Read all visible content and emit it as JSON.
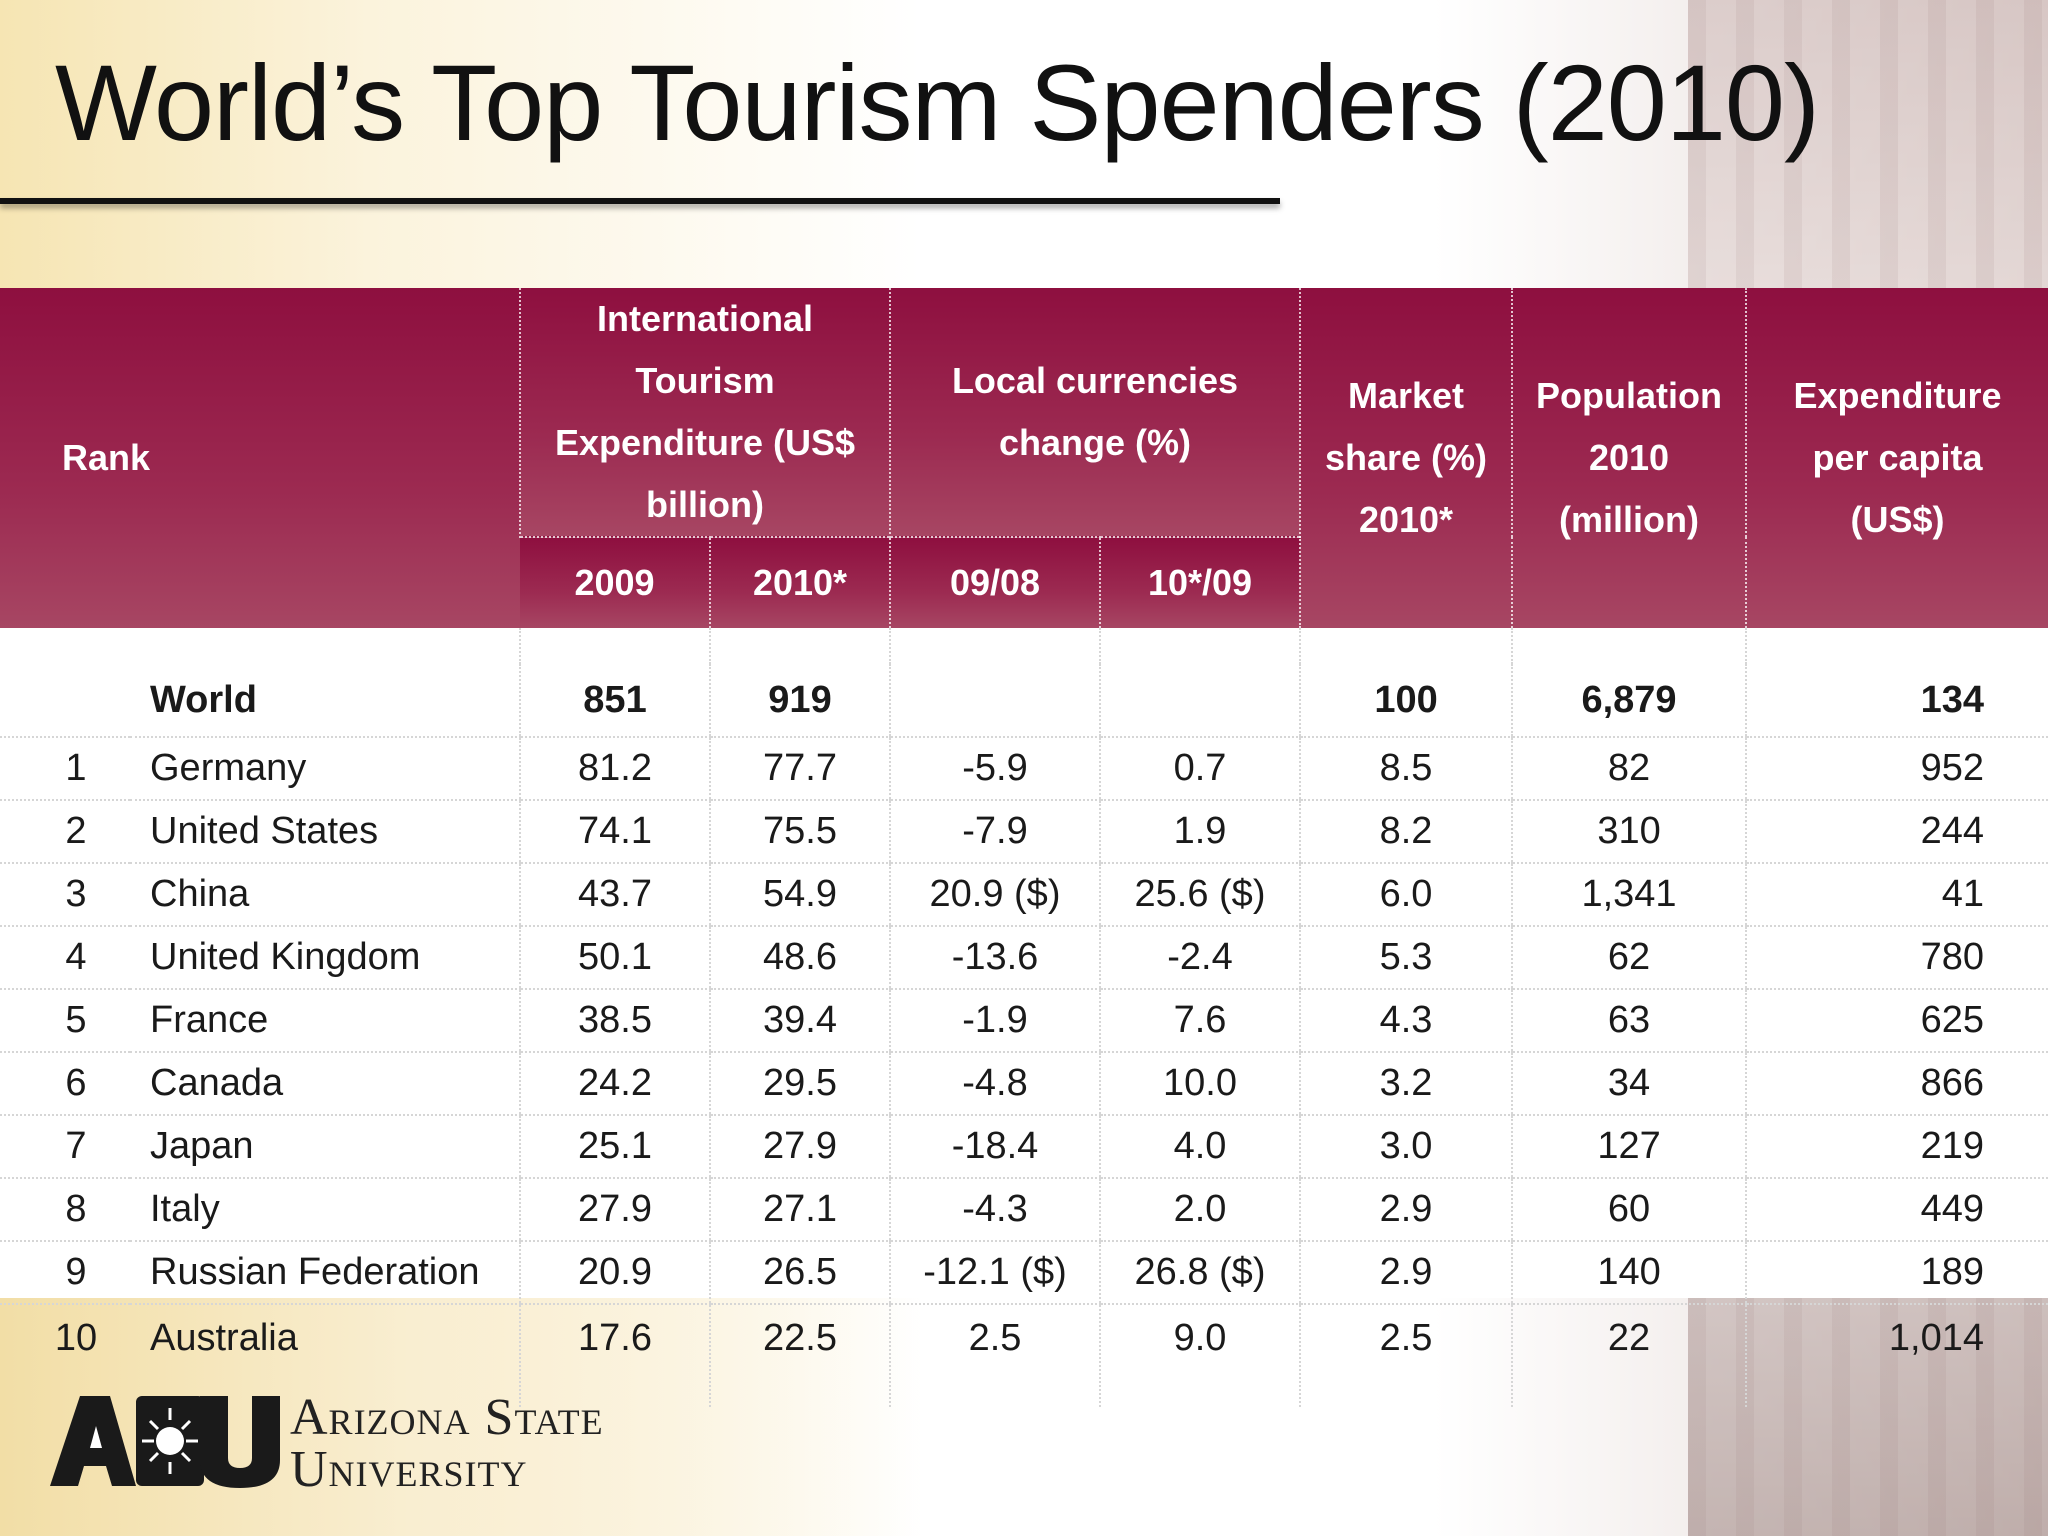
{
  "slide": {
    "title": "World’s Top Tourism Spenders (2010)"
  },
  "table": {
    "header": {
      "rank": "Rank",
      "expenditure": "International Tourism Expenditure (US$ billion)",
      "expenditure_line1": "International Tourism",
      "expenditure_line2": "Expenditure (US$ billion)",
      "local_line1": "Local currencies",
      "local_line2": "change (%)",
      "market_line1": "Market",
      "market_line2": "share (%)",
      "market_line3": "2010*",
      "population_line1": "Population",
      "population_line2": "2010",
      "population_line3": "(million)",
      "percap_line1": "Expenditure",
      "percap_line2": "per capita",
      "percap_line3": "(US$)",
      "sub_2009": "2009",
      "sub_2010": "2010*",
      "sub_0908": "09/08",
      "sub_1009": "10*/09"
    },
    "world": {
      "label": "World",
      "exp_2009": "851",
      "exp_2010": "919",
      "market_share": "100",
      "population": "6,879",
      "per_capita": "134"
    },
    "rows": [
      {
        "rank": "1",
        "country": "Germany",
        "exp_2009": "81.2",
        "exp_2010": "77.7",
        "chg_0908": "-5.9",
        "chg_1009": "0.7",
        "share": "8.5",
        "pop": "82",
        "percap": "952"
      },
      {
        "rank": "2",
        "country": "United States",
        "exp_2009": "74.1",
        "exp_2010": "75.5",
        "chg_0908": "-7.9",
        "chg_1009": "1.9",
        "share": "8.2",
        "pop": "310",
        "percap": "244"
      },
      {
        "rank": "3",
        "country": "China",
        "exp_2009": "43.7",
        "exp_2010": "54.9",
        "chg_0908": "20.9 ($)",
        "chg_1009": "25.6 ($)",
        "share": "6.0",
        "pop": "1,341",
        "percap": "41"
      },
      {
        "rank": "4",
        "country": "United Kingdom",
        "exp_2009": "50.1",
        "exp_2010": "48.6",
        "chg_0908": "-13.6",
        "chg_1009": "-2.4",
        "share": "5.3",
        "pop": "62",
        "percap": "780"
      },
      {
        "rank": "5",
        "country": "France",
        "exp_2009": "38.5",
        "exp_2010": "39.4",
        "chg_0908": "-1.9",
        "chg_1009": "7.6",
        "share": "4.3",
        "pop": "63",
        "percap": "625"
      },
      {
        "rank": "6",
        "country": "Canada",
        "exp_2009": "24.2",
        "exp_2010": "29.5",
        "chg_0908": "-4.8",
        "chg_1009": "10.0",
        "share": "3.2",
        "pop": "34",
        "percap": "866"
      },
      {
        "rank": "7",
        "country": "Japan",
        "exp_2009": "25.1",
        "exp_2010": "27.9",
        "chg_0908": "-18.4",
        "chg_1009": "4.0",
        "share": "3.0",
        "pop": "127",
        "percap": "219"
      },
      {
        "rank": "8",
        "country": "Italy",
        "exp_2009": "27.9",
        "exp_2010": "27.1",
        "chg_0908": "-4.3",
        "chg_1009": "2.0",
        "share": "2.9",
        "pop": "60",
        "percap": "449"
      },
      {
        "rank": "9",
        "country": "Russian Federation",
        "exp_2009": "20.9",
        "exp_2010": "26.5",
        "chg_0908": "-12.1 ($)",
        "chg_1009": "26.8 ($)",
        "share": "2.9",
        "pop": "140",
        "percap": "189"
      },
      {
        "rank": "10",
        "country": "Australia",
        "exp_2009": "17.6",
        "exp_2010": "22.5",
        "chg_0908": "2.5",
        "chg_1009": "9.0",
        "share": "2.5",
        "pop": "22",
        "percap": "1,014"
      }
    ]
  },
  "logo": {
    "mark": "ASU",
    "line1": "Arizona State",
    "line2": "University"
  },
  "colors": {
    "header_bg": "#8e0f3f",
    "header_text": "#ffffff"
  }
}
